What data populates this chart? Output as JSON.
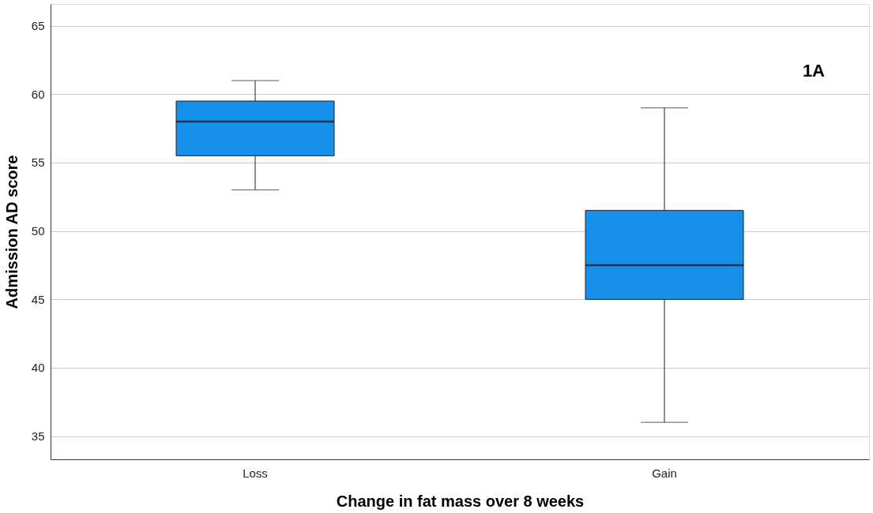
{
  "chart_data": {
    "type": "box",
    "xlabel": "Change in fat mass over 8 weeks",
    "ylabel": "Admission AD score",
    "categories": [
      "Loss",
      "Gain"
    ],
    "boxes": [
      {
        "low": 53,
        "q1": 55.5,
        "median": 58,
        "q3": 59.5,
        "high": 61
      },
      {
        "low": 36,
        "q1": 45,
        "median": 47.5,
        "q3": 51.5,
        "high": 59
      }
    ],
    "colors": [
      "#1790e9",
      "#1790e9"
    ],
    "ylim": [
      33.3,
      66.6
    ],
    "yticks": [
      35,
      40,
      45,
      50,
      55,
      60,
      65
    ],
    "grid": "y",
    "annotations": [
      "1A"
    ]
  }
}
